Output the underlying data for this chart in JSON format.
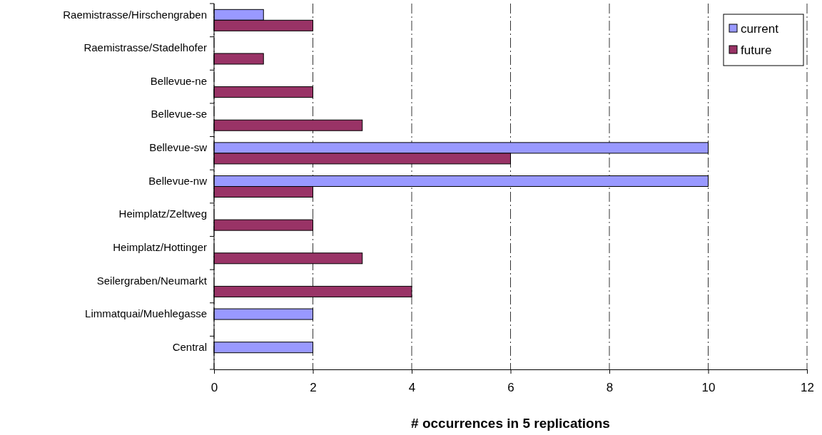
{
  "chart_data": {
    "type": "bar",
    "orientation": "horizontal",
    "xlabel": "# occurrences in 5 replications",
    "categories": [
      "Raemistrasse/Hirschengraben",
      "Raemistrasse/Stadelhofer",
      "Bellevue-ne",
      "Bellevue-se",
      "Bellevue-sw",
      "Bellevue-nw",
      "Heimplatz/Zeltweg",
      "Heimplatz/Hottinger",
      "Seilergraben/Neumarkt",
      "Limmatquai/Muehlegasse",
      "Central"
    ],
    "series": [
      {
        "name": "current",
        "color": "#9999ff",
        "values": [
          1,
          null,
          null,
          null,
          10,
          10,
          null,
          null,
          null,
          2,
          2
        ]
      },
      {
        "name": "future",
        "color": "#993366",
        "values": [
          2,
          1,
          2,
          3,
          6,
          2,
          2,
          3,
          4,
          null,
          null
        ]
      }
    ],
    "xlim": [
      0,
      12
    ],
    "xticks": [
      0,
      2,
      4,
      6,
      8,
      10,
      12
    ],
    "grid": "x",
    "legend": "top right"
  }
}
